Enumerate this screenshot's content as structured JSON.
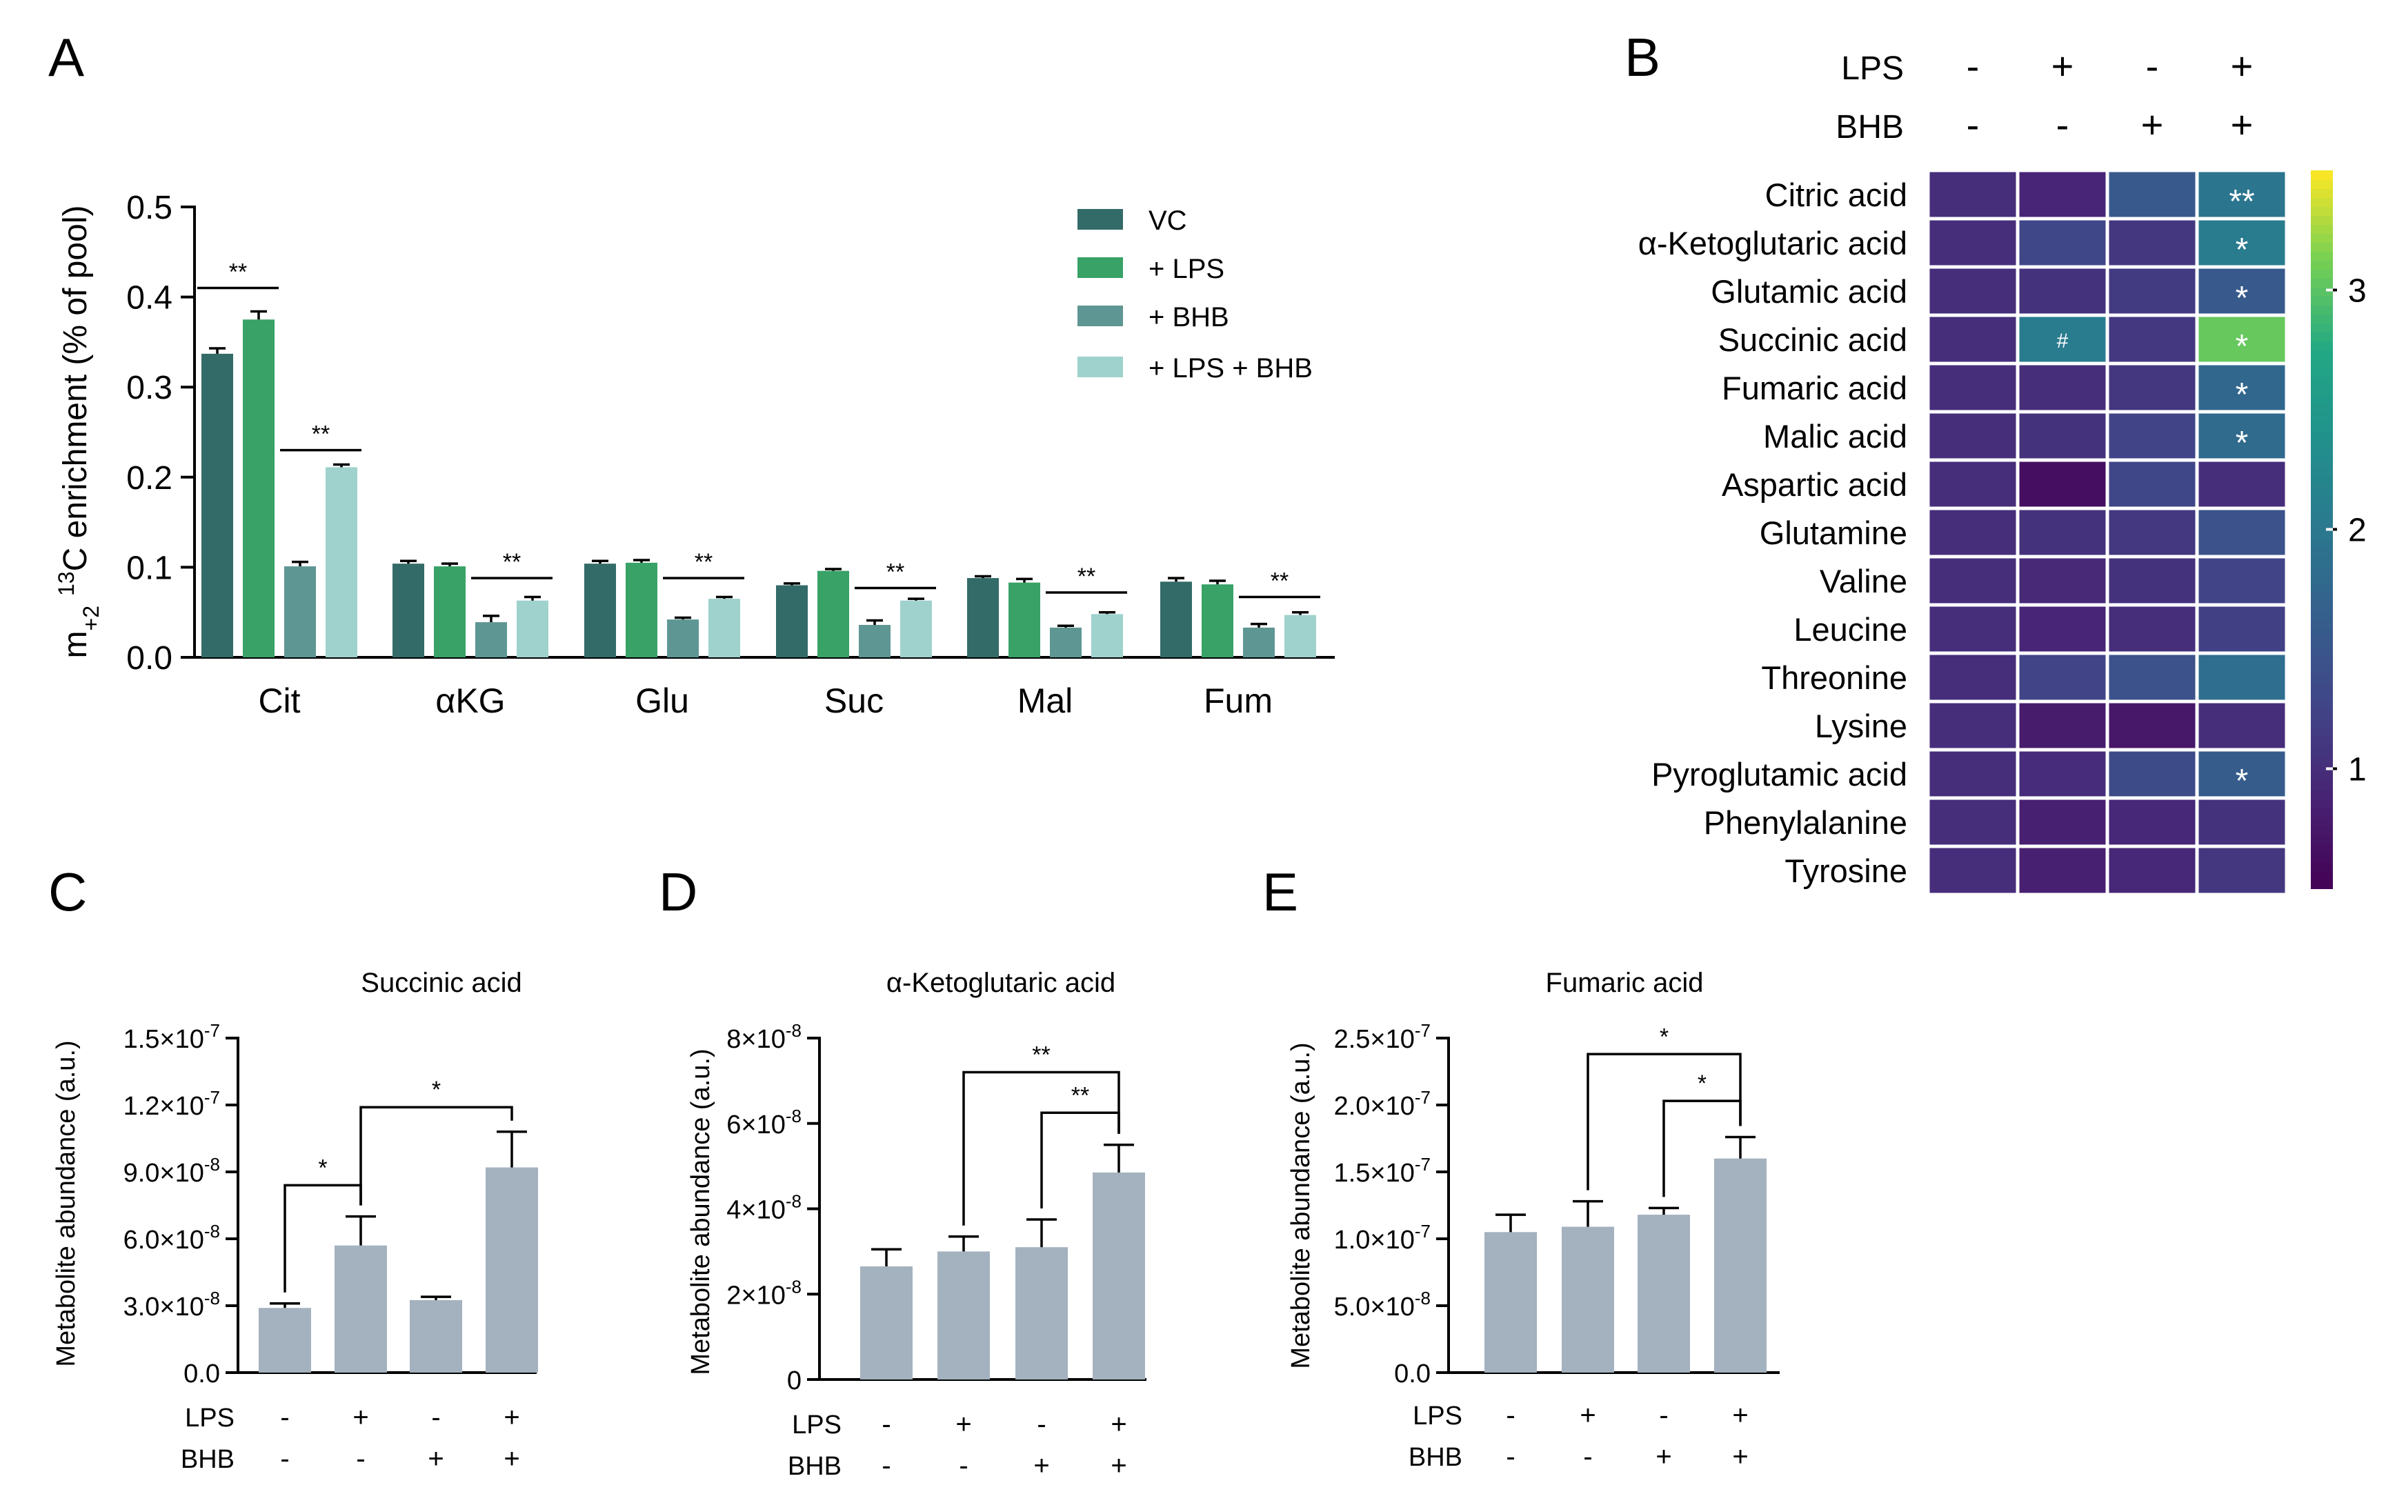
{
  "panel_labels": [
    "A",
    "B",
    "C",
    "D",
    "E"
  ],
  "colors": {
    "VC": "#336b68",
    "LPS": "#38a267",
    "BHB": "#5e9693",
    "LPS_BHB": "#9fd2cd",
    "bar_gray": "#a4b1be",
    "axis": "#000000"
  },
  "chart_data": [
    {
      "panel": "A",
      "type": "bar",
      "xlabel": "",
      "ylabel_main": "m",
      "ylabel_sub": "+2",
      "ylabel_sup": "13",
      "ylabel_rest": "C enrichment (% of pool)",
      "ylim": [
        0,
        0.5
      ],
      "yticks": [
        "0.0",
        "0.1",
        "0.2",
        "0.3",
        "0.4",
        "0.5"
      ],
      "categories": [
        "Cit",
        "αKG",
        "Glu",
        "Suc",
        "Mal",
        "Fum"
      ],
      "legend_position": "top-right",
      "series": [
        {
          "name": "VC",
          "values": [
            0.337,
            0.104,
            0.104,
            0.08,
            0.088,
            0.084
          ],
          "errors": [
            0.006,
            0.003,
            0.003,
            0.002,
            0.002,
            0.004
          ]
        },
        {
          "name": "+ LPS",
          "values": [
            0.375,
            0.101,
            0.105,
            0.096,
            0.083,
            0.081
          ],
          "errors": [
            0.009,
            0.003,
            0.003,
            0.002,
            0.004,
            0.004
          ]
        },
        {
          "name": "+ BHB",
          "values": [
            0.101,
            0.039,
            0.042,
            0.036,
            0.033,
            0.033
          ],
          "errors": [
            0.005,
            0.007,
            0.002,
            0.005,
            0.002,
            0.004
          ]
        },
        {
          "name": "+ LPS + BHB",
          "values": [
            0.211,
            0.063,
            0.065,
            0.063,
            0.048,
            0.047
          ],
          "errors": [
            0.003,
            0.004,
            0.002,
            0.002,
            0.002,
            0.003
          ]
        }
      ],
      "significance": [
        {
          "category": 0,
          "from_series": 0,
          "to_series": 1,
          "y": 0.41,
          "label": "**"
        },
        {
          "category": 0,
          "from_series": 2,
          "to_series": 3,
          "y": 0.23,
          "label": "**"
        },
        {
          "category": 1,
          "from_series": 2,
          "to_series": 3,
          "y": 0.088,
          "label": "**"
        },
        {
          "category": 2,
          "from_series": 2,
          "to_series": 3,
          "y": 0.088,
          "label": "**"
        },
        {
          "category": 3,
          "from_series": 2,
          "to_series": 3,
          "y": 0.077,
          "label": "**"
        },
        {
          "category": 4,
          "from_series": 2,
          "to_series": 3,
          "y": 0.072,
          "label": "**"
        },
        {
          "category": 5,
          "from_series": 2,
          "to_series": 3,
          "y": 0.067,
          "label": "**"
        }
      ]
    },
    {
      "panel": "B",
      "type": "heatmap",
      "condition_rows": [
        {
          "label": "LPS",
          "signs": [
            "-",
            "+",
            "-",
            "+"
          ]
        },
        {
          "label": "BHB",
          "signs": [
            "-",
            "-",
            "+",
            "+"
          ]
        }
      ],
      "rows": [
        "Citric acid",
        "α-Ketoglutaric acid",
        "Glutamic acid",
        "Succinic acid",
        "Fumaric acid",
        "Malic acid",
        "Aspartic acid",
        "Glutamine",
        "Valine",
        "Leucine",
        "Threonine",
        "Lysine",
        "Pyroglutamic acid",
        "Phenylalanine",
        "Tyrosine"
      ],
      "values": [
        [
          1.0,
          0.9,
          1.55,
          1.95
        ],
        [
          1.0,
          1.3,
          1.1,
          2.05
        ],
        [
          1.0,
          1.05,
          1.15,
          1.55
        ],
        [
          1.0,
          2.05,
          1.12,
          3.05
        ],
        [
          1.0,
          1.0,
          1.1,
          1.75
        ],
        [
          1.0,
          1.05,
          1.25,
          1.8
        ],
        [
          1.0,
          0.65,
          1.3,
          1.0
        ],
        [
          1.0,
          1.05,
          1.12,
          1.45
        ],
        [
          1.0,
          0.95,
          1.05,
          1.25
        ],
        [
          1.0,
          0.9,
          1.0,
          1.2
        ],
        [
          1.0,
          1.25,
          1.45,
          1.85
        ],
        [
          1.0,
          0.8,
          0.75,
          1.0
        ],
        [
          1.0,
          0.98,
          1.35,
          1.6
        ],
        [
          1.0,
          0.85,
          0.92,
          1.05
        ],
        [
          1.0,
          0.85,
          0.92,
          1.1
        ]
      ],
      "annotations": [
        {
          "row": 0,
          "col": 3,
          "label": "**"
        },
        {
          "row": 1,
          "col": 3,
          "label": "*"
        },
        {
          "row": 2,
          "col": 3,
          "label": "*"
        },
        {
          "row": 3,
          "col": 1,
          "label": "#"
        },
        {
          "row": 3,
          "col": 3,
          "label": "*"
        },
        {
          "row": 4,
          "col": 3,
          "label": "*"
        },
        {
          "row": 5,
          "col": 3,
          "label": "*"
        },
        {
          "row": 12,
          "col": 3,
          "label": "*"
        }
      ],
      "colorbar": {
        "range": [
          0.5,
          3.5
        ],
        "ticks": [
          1,
          2,
          3
        ],
        "colormap": "viridis"
      }
    },
    {
      "panel": "C",
      "type": "bar",
      "title": "Succinic acid",
      "ylabel": "Metabolite abundance (a.u.)",
      "ylim": [
        0,
        1.5e-07
      ],
      "yticks": [
        {
          "value": 0,
          "mant": "0.0",
          "exp": ""
        },
        {
          "value": 3e-08,
          "mant": "3.0×10",
          "exp": "-8"
        },
        {
          "value": 6e-08,
          "mant": "6.0×10",
          "exp": "-8"
        },
        {
          "value": 9e-08,
          "mant": "9.0×10",
          "exp": "-8"
        },
        {
          "value": 1.2e-07,
          "mant": "1.2×10",
          "exp": "-7"
        },
        {
          "value": 1.5e-07,
          "mant": "1.5×10",
          "exp": "-7"
        }
      ],
      "condition_rows": [
        {
          "label": "LPS",
          "signs": [
            "-",
            "+",
            "-",
            "+"
          ]
        },
        {
          "label": "BHB",
          "signs": [
            "-",
            "-",
            "+",
            "+"
          ]
        }
      ],
      "values": [
        2.9e-08,
        5.7e-08,
        3.25e-08,
        9.2e-08
      ],
      "errors": [
        2e-09,
        1.3e-08,
        1.5e-09,
        1.6e-08
      ],
      "significance": [
        {
          "from": 0,
          "to": 1,
          "y": 8.4e-08,
          "label": "*"
        },
        {
          "from": 1,
          "to": 3,
          "y": 1.19e-07,
          "label": "*"
        }
      ]
    },
    {
      "panel": "D",
      "type": "bar",
      "title": "α-Ketoglutaric acid",
      "ylabel": "Metabolite abundance  (a.u.)",
      "ylim": [
        0,
        8e-08
      ],
      "yticks": [
        {
          "value": 0,
          "mant": "0",
          "exp": ""
        },
        {
          "value": 2e-08,
          "mant": "2×10",
          "exp": "-8"
        },
        {
          "value": 4e-08,
          "mant": "4×10",
          "exp": "-8"
        },
        {
          "value": 6e-08,
          "mant": "6×10",
          "exp": "-8"
        },
        {
          "value": 8e-08,
          "mant": "8×10",
          "exp": "-8"
        }
      ],
      "condition_rows": [
        {
          "label": "LPS",
          "signs": [
            "-",
            "+",
            "-",
            "+"
          ]
        },
        {
          "label": "BHB",
          "signs": [
            "-",
            "-",
            "+",
            "+"
          ]
        }
      ],
      "values": [
        2.65e-08,
        3e-08,
        3.1e-08,
        4.85e-08
      ],
      "errors": [
        4e-09,
        3.5e-09,
        6.5e-09,
        6.5e-09
      ],
      "significance": [
        {
          "from": 2,
          "to": 3,
          "y": 6.25e-08,
          "label": "**"
        },
        {
          "from": 1,
          "to": 3,
          "y": 7.2e-08,
          "label": "**"
        }
      ]
    },
    {
      "panel": "E",
      "type": "bar",
      "title": "Fumaric acid",
      "ylabel": "Metabolite abundance  (a.u.)",
      "ylim": [
        0,
        2.5e-07
      ],
      "yticks": [
        {
          "value": 0,
          "mant": "0.0",
          "exp": ""
        },
        {
          "value": 5e-08,
          "mant": "5.0×10",
          "exp": "-8"
        },
        {
          "value": 1e-07,
          "mant": "1.0×10",
          "exp": "-7"
        },
        {
          "value": 1.5e-07,
          "mant": "1.5×10",
          "exp": "-7"
        },
        {
          "value": 2e-07,
          "mant": "2.0×10",
          "exp": "-7"
        },
        {
          "value": 2.5e-07,
          "mant": "2.5×10",
          "exp": "-7"
        }
      ],
      "condition_rows": [
        {
          "label": "LPS",
          "signs": [
            "-",
            "+",
            "-",
            "+"
          ]
        },
        {
          "label": "BHB",
          "signs": [
            "-",
            "-",
            "+",
            "+"
          ]
        }
      ],
      "values": [
        1.05e-07,
        1.09e-07,
        1.18e-07,
        1.6e-07
      ],
      "errors": [
        1.3e-08,
        1.9e-08,
        5e-09,
        1.6e-08
      ],
      "significance": [
        {
          "from": 2,
          "to": 3,
          "y": 2.03e-07,
          "label": "*"
        },
        {
          "from": 1,
          "to": 3,
          "y": 2.38e-07,
          "label": "*"
        }
      ]
    }
  ]
}
